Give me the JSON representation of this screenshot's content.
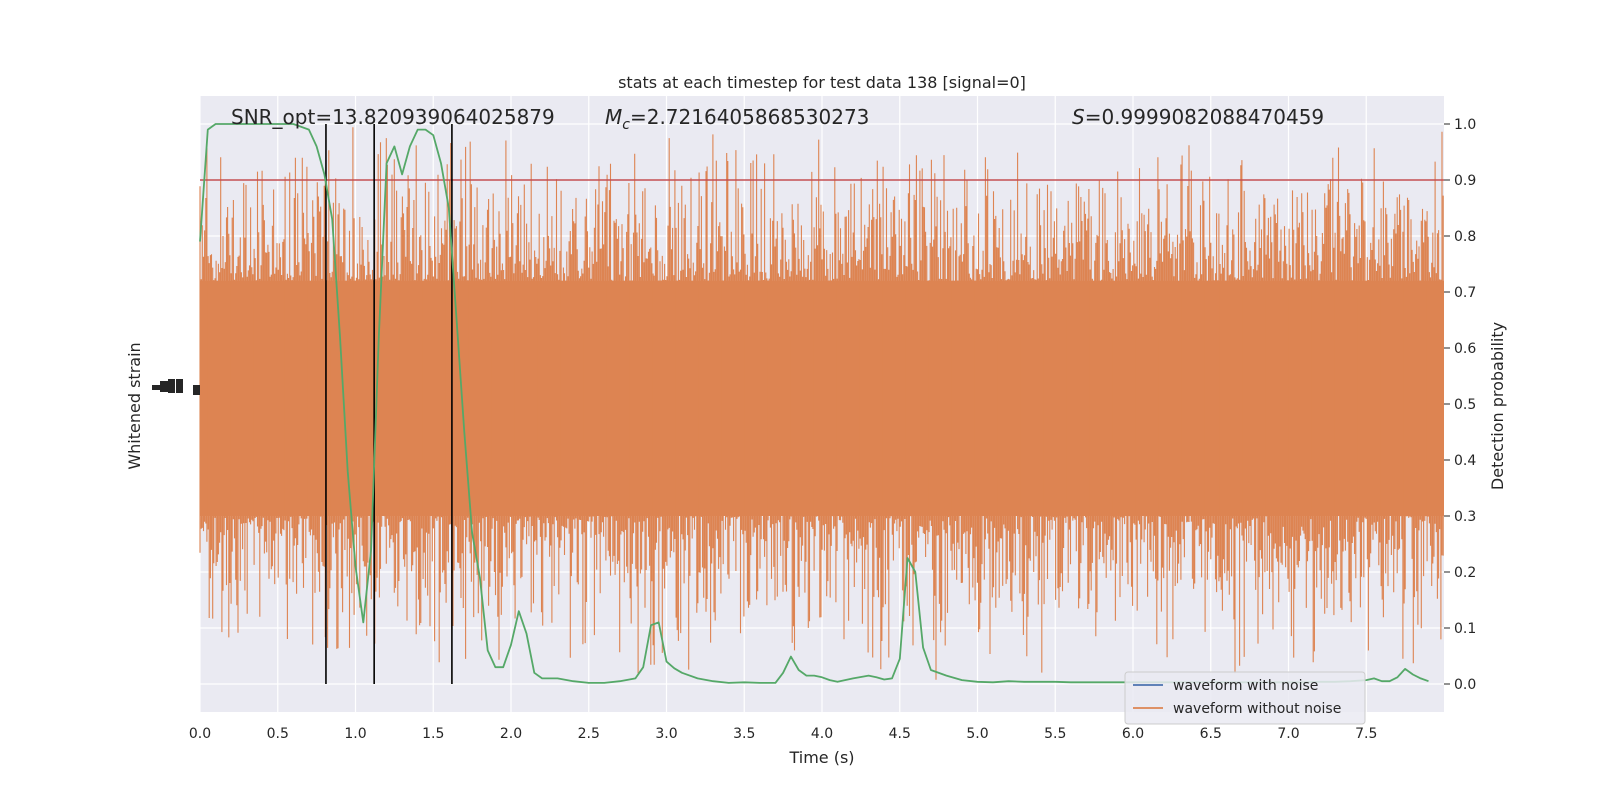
{
  "chart_data": {
    "type": "line",
    "title": "stats at each timestep for test data 138 [signal=0]",
    "xlabel": "Time (s)",
    "ylabel_left": "Whitened strain",
    "ylabel_right": "Detection probability",
    "xlim": [
      0.0,
      8.0
    ],
    "ylim_right": [
      -0.05,
      1.05
    ],
    "x_ticks": [
      "0.0",
      "0.5",
      "1.0",
      "1.5",
      "2.0",
      "2.5",
      "3.0",
      "3.5",
      "4.0",
      "4.5",
      "5.0",
      "5.5",
      "6.0",
      "6.5",
      "7.0",
      "7.5"
    ],
    "y_ticks_right": [
      "0.0",
      "0.1",
      "0.2",
      "0.3",
      "0.4",
      "0.5",
      "0.6",
      "0.7",
      "0.8",
      "0.9",
      "1.0"
    ],
    "grid": true,
    "legend_placement": "lower-right",
    "annotations": {
      "snr": "SNR_opt=13.820939064025879",
      "mc_symbol": "M",
      "mc_subscript": "c",
      "mc_value": "=2.7216405868530273",
      "s_symbol": "S",
      "s_value": "=0.9999082088470459"
    },
    "threshold": 0.9,
    "vertical_lines_x": [
      0.81,
      1.12,
      1.62
    ],
    "strain_band_prob": {
      "core_low": 0.3,
      "core_high": 0.72,
      "min_prob": 0.0,
      "max_prob": 1.0
    },
    "series": [
      {
        "name": "waveform with noise",
        "color": "#4c72b0",
        "kind": "strain"
      },
      {
        "name": "waveform without noise",
        "color": "#dd8452",
        "kind": "strain"
      },
      {
        "color": "#55a868",
        "kind": "probability",
        "x": [
          0.0,
          0.05,
          0.1,
          0.2,
          0.3,
          0.4,
          0.5,
          0.6,
          0.7,
          0.75,
          0.8,
          0.85,
          0.9,
          0.95,
          1.0,
          1.05,
          1.1,
          1.15,
          1.2,
          1.25,
          1.3,
          1.35,
          1.4,
          1.45,
          1.5,
          1.55,
          1.6,
          1.65,
          1.7,
          1.75,
          1.8,
          1.85,
          1.9,
          1.95,
          2.0,
          2.05,
          2.1,
          2.15,
          2.2,
          2.25,
          2.3,
          2.4,
          2.5,
          2.6,
          2.7,
          2.8,
          2.85,
          2.9,
          2.95,
          3.0,
          3.05,
          3.1,
          3.2,
          3.3,
          3.4,
          3.5,
          3.6,
          3.7,
          3.75,
          3.8,
          3.85,
          3.9,
          3.95,
          4.0,
          4.05,
          4.1,
          4.2,
          4.3,
          4.35,
          4.4,
          4.45,
          4.5,
          4.55,
          4.6,
          4.65,
          4.7,
          4.8,
          4.9,
          5.0,
          5.1,
          5.2,
          5.3,
          5.4,
          5.5,
          5.6,
          5.7,
          5.8,
          5.9,
          6.0,
          6.1,
          6.2,
          6.3,
          6.4,
          6.5,
          6.6,
          6.7,
          6.8,
          6.9,
          7.0,
          7.1,
          7.2,
          7.3,
          7.4,
          7.5,
          7.55,
          7.6,
          7.65,
          7.7,
          7.75,
          7.8,
          7.85,
          7.9
        ],
        "y": [
          0.79,
          0.99,
          1.0,
          1.0,
          1.0,
          1.0,
          1.0,
          1.0,
          0.99,
          0.96,
          0.91,
          0.83,
          0.62,
          0.38,
          0.21,
          0.11,
          0.24,
          0.62,
          0.93,
          0.96,
          0.91,
          0.96,
          0.99,
          0.99,
          0.98,
          0.93,
          0.85,
          0.65,
          0.45,
          0.27,
          0.19,
          0.06,
          0.03,
          0.03,
          0.07,
          0.13,
          0.09,
          0.02,
          0.01,
          0.01,
          0.01,
          0.005,
          0.002,
          0.002,
          0.005,
          0.01,
          0.03,
          0.105,
          0.11,
          0.04,
          0.028,
          0.02,
          0.01,
          0.005,
          0.002,
          0.003,
          0.002,
          0.002,
          0.02,
          0.049,
          0.025,
          0.015,
          0.015,
          0.012,
          0.007,
          0.004,
          0.01,
          0.015,
          0.012,
          0.008,
          0.01,
          0.045,
          0.225,
          0.2,
          0.065,
          0.025,
          0.015,
          0.007,
          0.004,
          0.003,
          0.005,
          0.004,
          0.004,
          0.004,
          0.003,
          0.003,
          0.003,
          0.003,
          0.003,
          0.003,
          0.003,
          0.003,
          0.003,
          0.003,
          0.003,
          0.003,
          0.003,
          0.003,
          0.003,
          0.003,
          0.004,
          0.004,
          0.005,
          0.007,
          0.01,
          0.005,
          0.005,
          0.012,
          0.027,
          0.017,
          0.01,
          0.005
        ]
      }
    ]
  }
}
